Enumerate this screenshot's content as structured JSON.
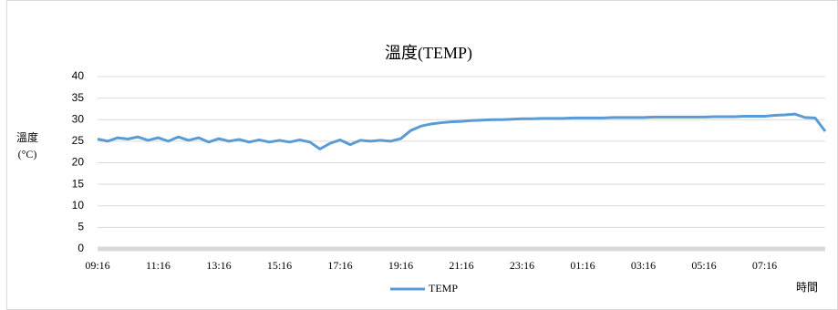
{
  "chart_data": {
    "type": "line",
    "title": "溫度(TEMP)",
    "ylabel": [
      "溫度",
      "(°C)"
    ],
    "xlabel": "時間",
    "categories": [
      "09:16",
      null,
      null,
      null,
      null,
      null,
      "11:16",
      null,
      null,
      null,
      null,
      null,
      "13:16",
      null,
      null,
      null,
      null,
      null,
      "15:16",
      null,
      null,
      null,
      null,
      null,
      "17:16",
      null,
      null,
      null,
      null,
      null,
      "19:16",
      null,
      null,
      null,
      null,
      null,
      "21:16",
      null,
      null,
      null,
      null,
      null,
      "23:16",
      null,
      null,
      null,
      null,
      null,
      "01:16",
      null,
      null,
      null,
      null,
      null,
      "03:16",
      null,
      null,
      null,
      null,
      null,
      "05:16",
      null,
      null,
      null,
      null,
      null,
      "07:16",
      null,
      null,
      null,
      null,
      null,
      null
    ],
    "series": [
      {
        "name": "TEMP",
        "color": "#5b9bd5",
        "values": [
          25.5,
          25,
          25.8,
          25.5,
          26,
          25.2,
          25.8,
          25,
          26,
          25.2,
          25.8,
          24.8,
          25.6,
          25,
          25.4,
          24.8,
          25.3,
          24.8,
          25.2,
          24.8,
          25.3,
          24.8,
          23.2,
          24.5,
          25.3,
          24.2,
          25.2,
          25,
          25.2,
          25,
          25.6,
          27.5,
          28.5,
          29,
          29.3,
          29.5,
          29.6,
          29.8,
          29.9,
          30,
          30,
          30.1,
          30.2,
          30.2,
          30.3,
          30.3,
          30.3,
          30.4,
          30.4,
          30.4,
          30.4,
          30.5,
          30.5,
          30.5,
          30.5,
          30.6,
          30.6,
          30.6,
          30.6,
          30.6,
          30.6,
          30.7,
          30.7,
          30.7,
          30.8,
          30.8,
          30.8,
          31,
          31.1,
          31.3,
          30.5,
          30.4,
          27.3
        ]
      }
    ],
    "ylim": [
      0,
      40
    ],
    "yticks": [
      0,
      5,
      10,
      15,
      20,
      25,
      30,
      35,
      40
    ],
    "grid": true,
    "legend": "bottom"
  }
}
